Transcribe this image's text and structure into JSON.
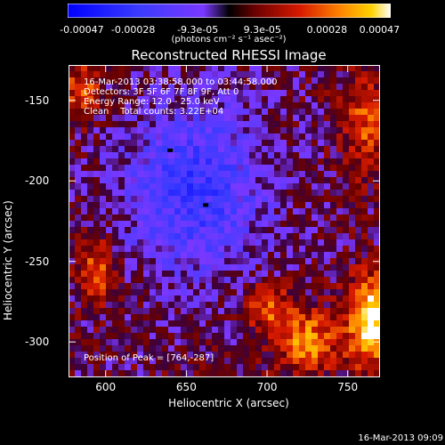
{
  "chart_data": {
    "type": "heatmap",
    "title": "Reconstructed RHESSI Image",
    "xlabel": "Heliocentric X (arcsec)",
    "ylabel": "Heliocentric Y (arcsec)",
    "xlim": [
      577,
      770
    ],
    "ylim": [
      -322,
      -128
    ],
    "xticks": [
      "600",
      "650",
      "700",
      "750"
    ],
    "yticks": [
      "-150",
      "-200",
      "-250",
      "-300"
    ],
    "colorbar": {
      "labels": [
        "-0.00047",
        "-0.00028",
        "-9.3e-05",
        "9.3e-05",
        "0.00028",
        "0.00047"
      ],
      "units": "(photons cm⁻² s⁻¹ asec⁻²)",
      "range": [
        -0.00047,
        0.00047
      ]
    },
    "annotations": [
      "16-Mar-2013 03:38:58.000 to 03:44:58.000",
      "Detectors: 3F 5F 6F 7F 8F 9F, Att 0",
      "Energy Range: 12.0 - 25.0 keV",
      "Clean    Total counts: 3.22E+04"
    ],
    "peak_text": "Position of Peak = [764,-287]",
    "peak_position": [
      764,
      -287
    ],
    "timestamp": "16-Mar-2013 09:09"
  }
}
